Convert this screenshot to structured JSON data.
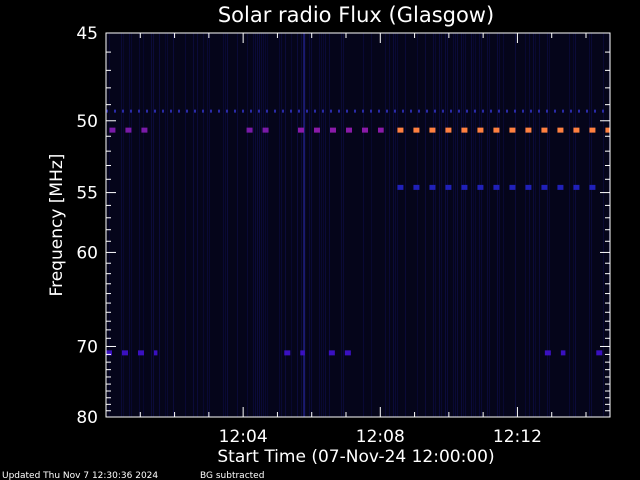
{
  "chart_data": {
    "type": "heatmap",
    "title": "Solar radio Flux (Glasgow)",
    "xlabel": "Start Time (07-Nov-24 12:00:00)",
    "ylabel": "Frequency [MHz]",
    "x_unit": "minutes after 12:00:00",
    "xlim": [
      0,
      14.7
    ],
    "ylim": [
      45,
      80
    ],
    "y_scale": "reciprocal",
    "x_ticks": [
      {
        "value": 4,
        "label": "12:04"
      },
      {
        "value": 8,
        "label": "12:08"
      },
      {
        "value": 12,
        "label": "12:12"
      }
    ],
    "y_ticks": [
      {
        "value": 45,
        "label": "45"
      },
      {
        "value": 50,
        "label": "50"
      },
      {
        "value": 55,
        "label": "55"
      },
      {
        "value": 60,
        "label": "60"
      },
      {
        "value": 70,
        "label": "70"
      },
      {
        "value": 80,
        "label": "80"
      }
    ],
    "background_color": "#05051a",
    "emission_bands": [
      {
        "frequency_mhz": 49.4,
        "t_start": 0,
        "t_end": 14.7,
        "color": "#2a2aa8",
        "style": "dotted"
      },
      {
        "frequency_mhz": 50.6,
        "t_start": 0.1,
        "t_end": 1.5,
        "color": "#7a1aa8",
        "style": "dashed"
      },
      {
        "frequency_mhz": 50.6,
        "t_start": 4.1,
        "t_end": 4.9,
        "color": "#7a1aa8",
        "style": "dashed"
      },
      {
        "frequency_mhz": 50.6,
        "t_start": 5.6,
        "t_end": 8.1,
        "color": "#8a1aa8",
        "style": "dashed"
      },
      {
        "frequency_mhz": 50.6,
        "t_start": 8.5,
        "t_end": 14.7,
        "color": "#ff8040",
        "style": "dashed"
      },
      {
        "frequency_mhz": 54.6,
        "t_start": 8.5,
        "t_end": 14.5,
        "color": "#2020b8",
        "style": "dashed"
      },
      {
        "frequency_mhz": 70.8,
        "t_start": 0,
        "t_end": 1.5,
        "color": "#3a10c0",
        "style": "dashed"
      },
      {
        "frequency_mhz": 70.8,
        "t_start": 5.2,
        "t_end": 5.8,
        "color": "#3a10c0",
        "style": "dashed"
      },
      {
        "frequency_mhz": 70.8,
        "t_start": 6.5,
        "t_end": 7.4,
        "color": "#3a10c0",
        "style": "dashed"
      },
      {
        "frequency_mhz": 70.8,
        "t_start": 12.8,
        "t_end": 13.4,
        "color": "#3a10c0",
        "style": "dashed"
      },
      {
        "frequency_mhz": 70.8,
        "t_start": 14.3,
        "t_end": 14.5,
        "color": "#3a10c0",
        "style": "dashed"
      }
    ],
    "accent_color": "#ff8040"
  },
  "footer": {
    "updated": "Updated Thu Nov  7 12:30:36 2024",
    "note": "BG subtracted"
  }
}
